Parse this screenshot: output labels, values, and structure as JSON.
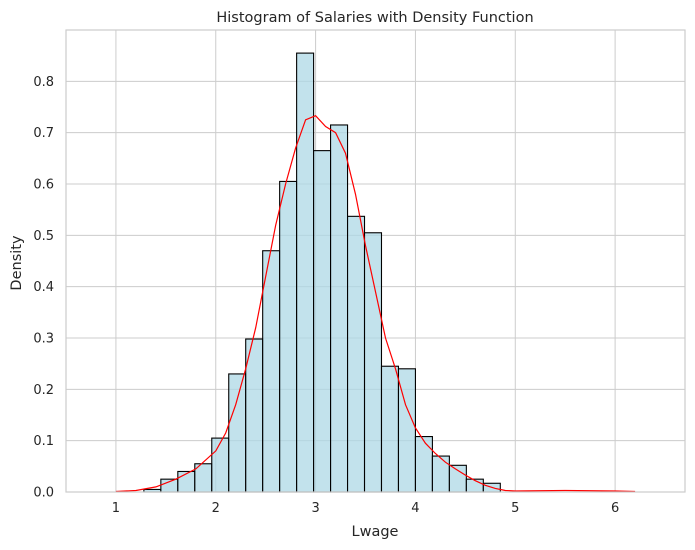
{
  "chart_data": {
    "type": "bar",
    "title": "Histogram of Salaries with Density Function",
    "xlabel": "Lwage",
    "ylabel": "Density",
    "xlim": [
      0.5,
      6.7
    ],
    "ylim": [
      0,
      0.9
    ],
    "xticks": [
      1,
      2,
      3,
      4,
      5,
      6
    ],
    "yticks": [
      0.0,
      0.1,
      0.2,
      0.3,
      0.4,
      0.5,
      0.6,
      0.7,
      0.8
    ],
    "grid": true,
    "bins": {
      "left_edges": [
        1.28,
        1.45,
        1.62,
        1.79,
        1.96,
        2.13,
        2.3,
        2.47,
        2.64,
        2.81,
        2.98,
        3.15,
        3.32,
        3.49,
        3.66,
        3.83,
        4.0,
        4.17,
        4.34,
        4.51,
        4.68
      ],
      "width": 0.17,
      "values": [
        0.005,
        0.025,
        0.04,
        0.055,
        0.105,
        0.23,
        0.298,
        0.47,
        0.605,
        0.855,
        0.665,
        0.715,
        0.537,
        0.505,
        0.245,
        0.24,
        0.108,
        0.07,
        0.052,
        0.025,
        0.017
      ]
    },
    "series": [
      {
        "type": "line",
        "x": [
          1.0,
          1.2,
          1.4,
          1.6,
          1.8,
          2.0,
          2.1,
          2.2,
          2.3,
          2.4,
          2.5,
          2.6,
          2.7,
          2.8,
          2.9,
          3.0,
          3.1,
          3.2,
          3.3,
          3.4,
          3.5,
          3.6,
          3.7,
          3.8,
          3.9,
          4.0,
          4.1,
          4.2,
          4.3,
          4.4,
          4.5,
          4.6,
          4.7,
          4.8,
          4.9,
          5.0,
          5.5,
          6.0,
          6.2
        ],
        "y": [
          0.001,
          0.003,
          0.01,
          0.025,
          0.045,
          0.08,
          0.115,
          0.17,
          0.24,
          0.32,
          0.42,
          0.52,
          0.6,
          0.67,
          0.725,
          0.733,
          0.712,
          0.7,
          0.66,
          0.58,
          0.48,
          0.39,
          0.3,
          0.24,
          0.17,
          0.125,
          0.095,
          0.075,
          0.058,
          0.045,
          0.033,
          0.022,
          0.013,
          0.007,
          0.003,
          0.002,
          0.003,
          0.002,
          0.001
        ],
        "color": "#ff0000"
      }
    ],
    "colors": {
      "bar_fill": "#add8e6",
      "bar_edge": "#000000",
      "kde": "#ff0000"
    }
  }
}
